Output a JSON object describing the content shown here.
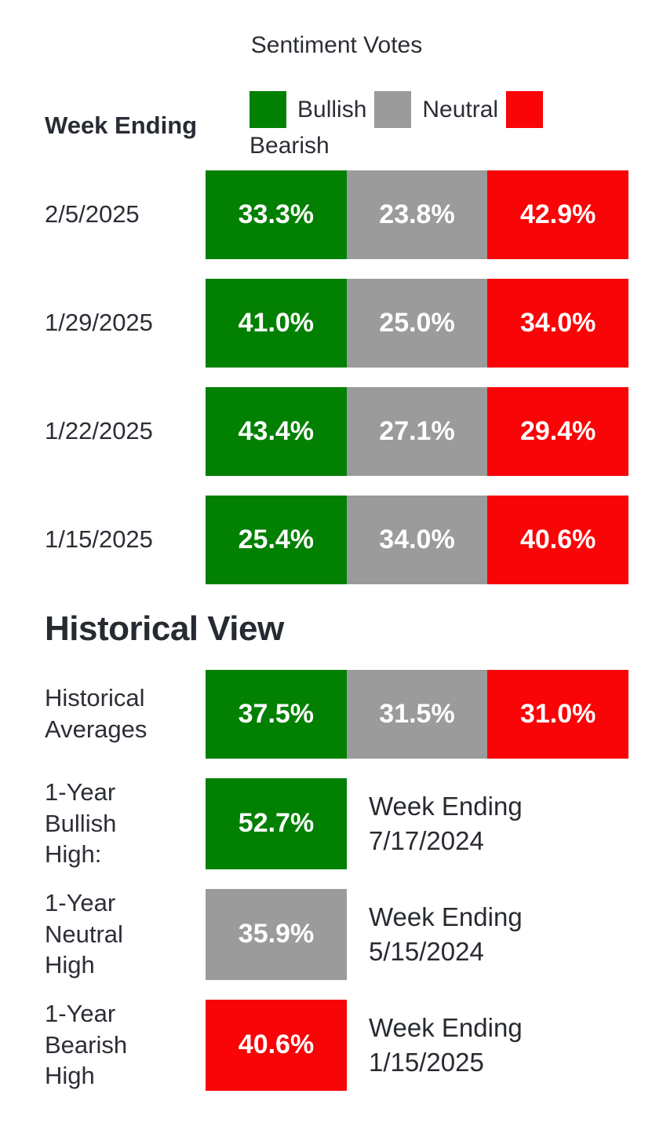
{
  "title": "Sentiment Votes",
  "header": {
    "week_ending_label": "Week Ending"
  },
  "colors": {
    "bullish": "#018001",
    "neutral": "#9b9b9b",
    "bearish": "#f90407",
    "text_dark": "#2b2e35",
    "bar_value_text": "#ffffff"
  },
  "legend": {
    "bullish": "Bullish",
    "neutral": "Neutral",
    "bearish": "Bearish"
  },
  "weekly_rows": [
    {
      "week": "2/5/2025",
      "bullish": "33.3%",
      "neutral": "23.8%",
      "bearish": "42.9%"
    },
    {
      "week": "1/29/2025",
      "bullish": "41.0%",
      "neutral": "25.0%",
      "bearish": "34.0%"
    },
    {
      "week": "1/22/2025",
      "bullish": "43.4%",
      "neutral": "27.1%",
      "bearish": "29.4%"
    },
    {
      "week": "1/15/2025",
      "bullish": "25.4%",
      "neutral": "34.0%",
      "bearish": "40.6%"
    }
  ],
  "historical": {
    "heading": "Historical View",
    "averages": {
      "label": "Historical Averages",
      "bullish": "37.5%",
      "neutral": "31.5%",
      "bearish": "31.0%"
    },
    "highs": [
      {
        "label": "1-Year Bullish High:",
        "value": "52.7%",
        "week_ending_label": "Week Ending",
        "date": "7/17/2024"
      },
      {
        "label": "1-Year Neutral High",
        "value": "35.9%",
        "week_ending_label": "Week Ending",
        "date": "5/15/2024"
      },
      {
        "label": "1-Year Bearish High",
        "value": "40.6%",
        "week_ending_label": "Week Ending",
        "date": "1/15/2025"
      }
    ]
  },
  "chart_data": {
    "type": "bar",
    "subtype": "horizontal-stacked-equal-thirds",
    "title": "Sentiment Votes",
    "categories": [
      "2/5/2025",
      "1/29/2025",
      "1/22/2025",
      "1/15/2025"
    ],
    "series": [
      {
        "name": "Bullish",
        "color": "#018001",
        "values": [
          33.3,
          41.0,
          43.4,
          25.4
        ]
      },
      {
        "name": "Neutral",
        "color": "#9b9b9b",
        "values": [
          23.8,
          25.0,
          27.1,
          34.0
        ]
      },
      {
        "name": "Bearish",
        "color": "#f90407",
        "values": [
          42.9,
          34.0,
          29.4,
          40.6
        ]
      }
    ],
    "historical_averages": {
      "Bullish": 37.5,
      "Neutral": 31.5,
      "Bearish": 31.0
    },
    "one_year_highs": [
      {
        "name": "1-Year Bullish High",
        "value": 52.7,
        "week_ending": "7/17/2024"
      },
      {
        "name": "1-Year Neutral High",
        "value": 35.9,
        "week_ending": "5/15/2024"
      },
      {
        "name": "1-Year Bearish High",
        "value": 40.6,
        "week_ending": "1/15/2025"
      }
    ],
    "unit": "%",
    "legend_position": "top",
    "grid": false
  }
}
